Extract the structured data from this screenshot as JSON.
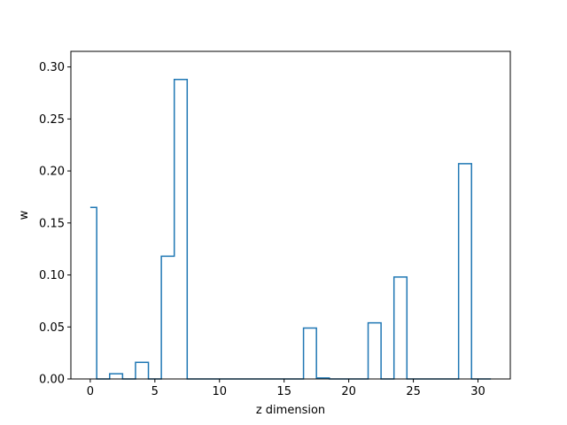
{
  "chart_data": {
    "type": "step",
    "title": "",
    "xlabel": "z dimension",
    "ylabel": "w",
    "xlim": [
      -1.5,
      32.5
    ],
    "ylim": [
      0,
      0.315
    ],
    "xticks": [
      0,
      5,
      10,
      15,
      20,
      25,
      30
    ],
    "yticks": [
      0.0,
      0.05,
      0.1,
      0.15,
      0.2,
      0.25,
      0.3
    ],
    "xtick_labels": [
      "0",
      "5",
      "10",
      "15",
      "20",
      "25",
      "30"
    ],
    "ytick_labels": [
      "0.00",
      "0.05",
      "0.10",
      "0.15",
      "0.20",
      "0.25",
      "0.30"
    ],
    "grid": false,
    "color": "#1f77b4",
    "x": [
      0,
      1,
      2,
      3,
      4,
      5,
      6,
      7,
      8,
      9,
      10,
      11,
      12,
      13,
      14,
      15,
      16,
      17,
      18,
      19,
      20,
      21,
      22,
      23,
      24,
      25,
      26,
      27,
      28,
      29,
      30,
      31
    ],
    "values": [
      0.165,
      0.0,
      0.005,
      0.0,
      0.016,
      0.0,
      0.118,
      0.288,
      0.0,
      0.0,
      0.0,
      0.0,
      0.0,
      0.0,
      0.0,
      0.0,
      0.0,
      0.049,
      0.001,
      0.0,
      0.0,
      0.0,
      0.054,
      0.0,
      0.098,
      0.0,
      0.0,
      0.0,
      0.0,
      0.207,
      0.0,
      0.0
    ]
  }
}
